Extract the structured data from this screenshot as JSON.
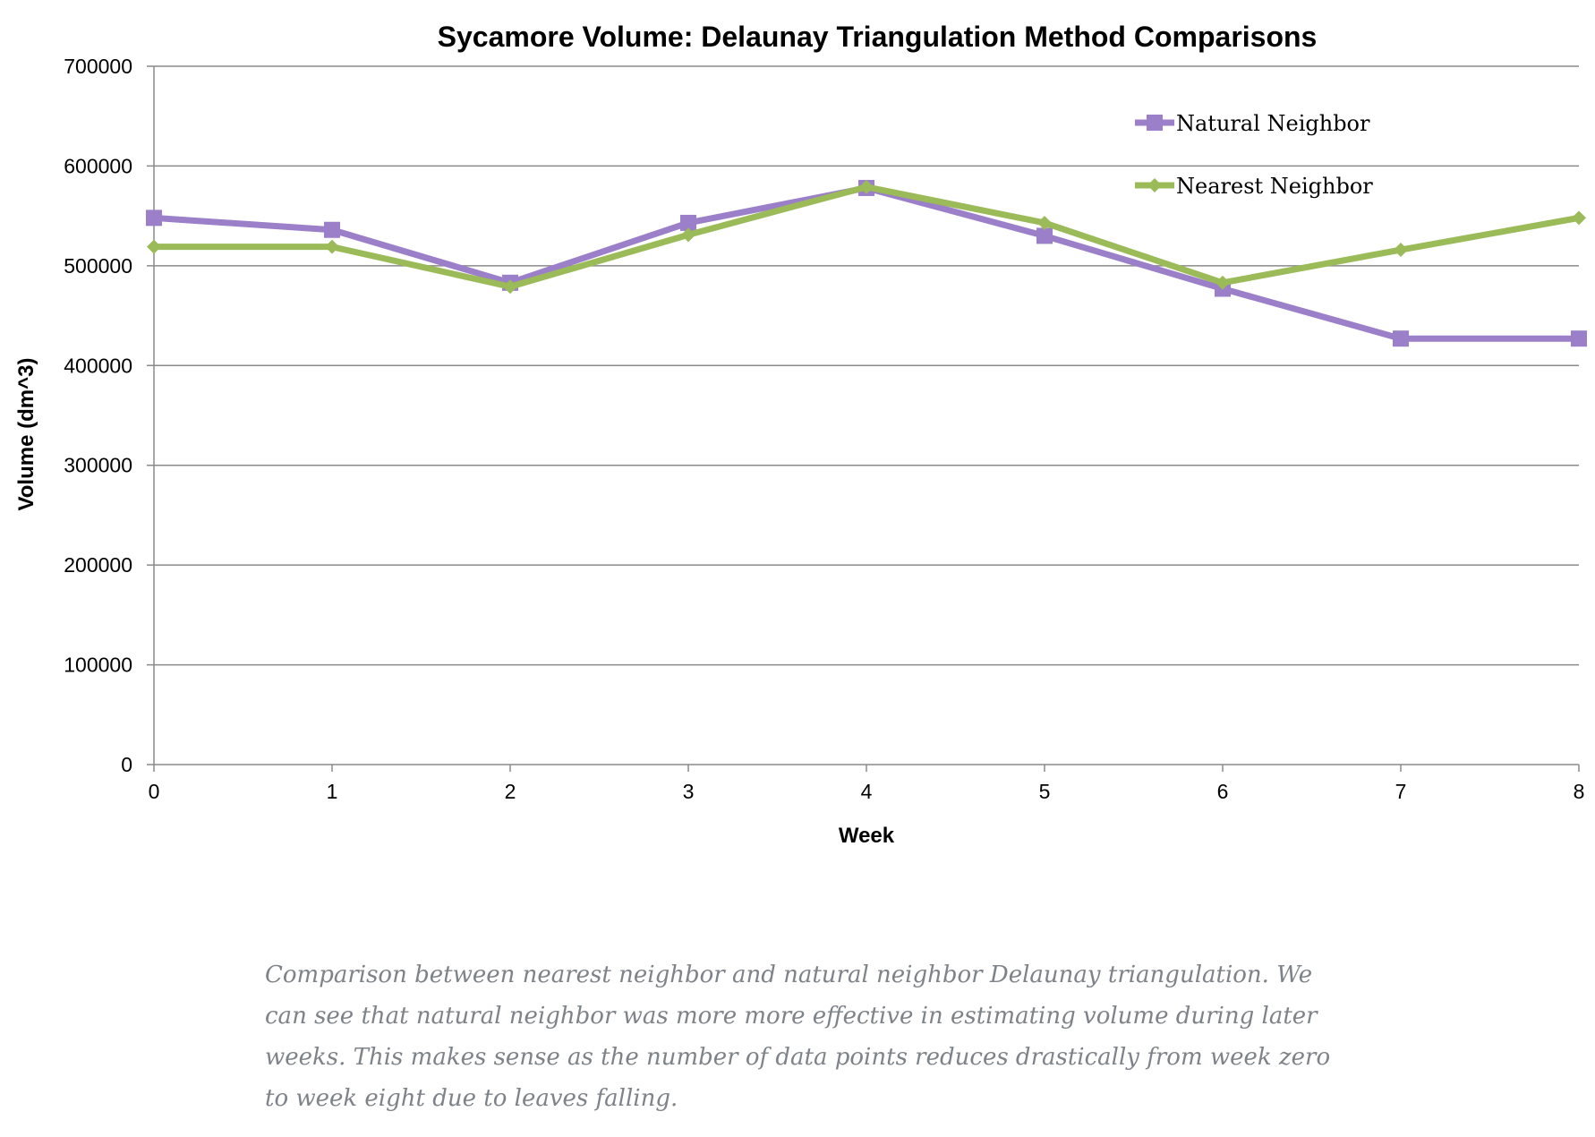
{
  "chart_data": {
    "type": "line",
    "title": "Sycamore Volume: Delaunay Triangulation Method Comparisons",
    "xlabel": "Week",
    "ylabel": "Volume (dm^3)",
    "x": [
      0,
      1,
      2,
      3,
      4,
      5,
      6,
      7,
      8
    ],
    "ylim": [
      0,
      700000
    ],
    "yticks": [
      0,
      100000,
      200000,
      300000,
      400000,
      500000,
      600000,
      700000
    ],
    "grid": true,
    "legend_position": "top-right",
    "series": [
      {
        "name": "Natural Neighbor",
        "color": "#9b7fc8",
        "marker": "square",
        "values": [
          548000,
          536000,
          483000,
          543000,
          578000,
          530000,
          477000,
          427000,
          427000
        ]
      },
      {
        "name": "Nearest Neighbor",
        "color": "#9bbb59",
        "marker": "diamond",
        "values": [
          519000,
          519000,
          479000,
          531000,
          579000,
          543000,
          483000,
          516000,
          548000
        ]
      }
    ]
  },
  "caption": "Comparison between nearest neighbor and natural neighbor Delaunay triangulation. We can see that natural neighbor was more more effective in estimating volume during later weeks. This makes sense as the number of data points reduces drastically from week zero to week eight due to leaves falling."
}
